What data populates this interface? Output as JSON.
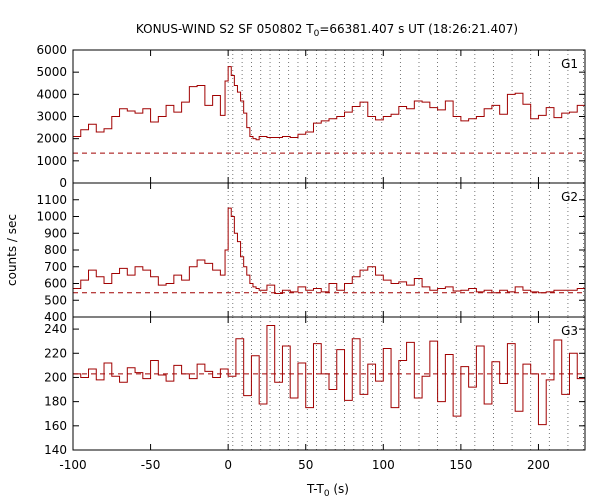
{
  "chart_data": {
    "type": "line",
    "title": {
      "prefix": "KONUS-WIND S2 SF 050802 T",
      "sub": "0",
      "suffix": "=66381.407 s UT (18:26:21.407)"
    },
    "xlabel": {
      "prefix": "T-T",
      "sub": "0",
      "suffix": " (s)"
    },
    "ylabel": "counts / sec",
    "xlim": [
      -100,
      230
    ],
    "x_ticks": [
      -100,
      -50,
      0,
      50,
      100,
      150,
      200
    ],
    "x_tick_labels": [
      "-100",
      "-50",
      "0",
      "50",
      "100",
      "150",
      "200"
    ],
    "trigger_lines_x": [
      0,
      3,
      9,
      15,
      21,
      27,
      33,
      39,
      45,
      51,
      57,
      63,
      69,
      75,
      81,
      87,
      93,
      99,
      111,
      123,
      135,
      147,
      159,
      171,
      183,
      195,
      207,
      219,
      229
    ],
    "colors": {
      "series": "#a00000",
      "grid": "#555555"
    },
    "panels": [
      {
        "name": "G1",
        "ylim": [
          0,
          6000
        ],
        "y_ticks": [
          0,
          1000,
          2000,
          3000,
          4000,
          5000,
          6000
        ],
        "y_tick_labels": [
          "0",
          "1000",
          "2000",
          "3000",
          "4000",
          "5000",
          "6000"
        ],
        "background_level": 1350,
        "series": {
          "x": [
            -100,
            -95,
            -90,
            -85,
            -80,
            -75,
            -70,
            -65,
            -60,
            -55,
            -50,
            -45,
            -40,
            -35,
            -30,
            -25,
            -20,
            -15,
            -10,
            -5,
            -2,
            0,
            2,
            4,
            6,
            8,
            10,
            12,
            14,
            16,
            18,
            20,
            25,
            30,
            35,
            40,
            45,
            50,
            55,
            60,
            65,
            70,
            75,
            80,
            85,
            90,
            95,
            100,
            105,
            110,
            115,
            120,
            125,
            130,
            135,
            140,
            145,
            150,
            155,
            160,
            165,
            170,
            175,
            180,
            185,
            190,
            195,
            200,
            205,
            210,
            215,
            220,
            225,
            230
          ],
          "y": [
            2100,
            2400,
            2650,
            2300,
            2450,
            3000,
            3350,
            3250,
            3150,
            3350,
            2750,
            3000,
            3500,
            3200,
            3650,
            4350,
            4400,
            3500,
            3950,
            3050,
            4600,
            5250,
            4850,
            4400,
            4100,
            3700,
            3150,
            2500,
            2100,
            2000,
            1950,
            2100,
            2050,
            2050,
            2100,
            2050,
            2200,
            2300,
            2700,
            2800,
            2900,
            3000,
            3200,
            3450,
            3650,
            3000,
            2850,
            3000,
            3100,
            3450,
            3350,
            3700,
            3650,
            3400,
            3300,
            3700,
            3000,
            2800,
            2900,
            3000,
            3350,
            3500,
            3100,
            4000,
            4050,
            3550,
            2900,
            3050,
            3400,
            2950,
            3150,
            3200,
            3500,
            3450
          ]
        }
      },
      {
        "name": "G2",
        "ylim": [
          400,
          1200
        ],
        "y_ticks": [
          400,
          500,
          600,
          700,
          800,
          900,
          1000,
          1100
        ],
        "y_tick_labels": [
          "400",
          "500",
          "600",
          "700",
          "800",
          "900",
          "1000",
          "1100"
        ],
        "background_level": 545,
        "series": {
          "x": [
            -100,
            -95,
            -90,
            -85,
            -80,
            -75,
            -70,
            -65,
            -60,
            -55,
            -50,
            -45,
            -40,
            -35,
            -30,
            -25,
            -20,
            -15,
            -10,
            -5,
            -2,
            0,
            2,
            4,
            6,
            8,
            10,
            12,
            14,
            16,
            18,
            20,
            25,
            30,
            35,
            40,
            45,
            50,
            55,
            60,
            65,
            70,
            75,
            80,
            85,
            90,
            95,
            100,
            105,
            110,
            115,
            120,
            125,
            130,
            135,
            140,
            145,
            150,
            155,
            160,
            165,
            170,
            175,
            180,
            185,
            190,
            195,
            200,
            205,
            210,
            215,
            220,
            225,
            230
          ],
          "y": [
            570,
            620,
            680,
            640,
            600,
            660,
            690,
            650,
            700,
            680,
            640,
            590,
            600,
            650,
            620,
            700,
            740,
            720,
            680,
            650,
            800,
            1050,
            1000,
            900,
            850,
            760,
            700,
            650,
            600,
            580,
            570,
            560,
            590,
            540,
            560,
            550,
            580,
            560,
            570,
            550,
            600,
            560,
            600,
            640,
            680,
            700,
            650,
            620,
            600,
            610,
            590,
            630,
            580,
            560,
            570,
            580,
            555,
            560,
            570,
            550,
            560,
            545,
            560,
            550,
            580,
            560,
            550,
            545,
            550,
            560,
            560,
            560,
            570,
            620
          ]
        }
      },
      {
        "name": "G3",
        "ylim": [
          140,
          250
        ],
        "y_ticks": [
          140,
          160,
          180,
          200,
          220,
          240
        ],
        "y_tick_labels": [
          "140",
          "160",
          "180",
          "200",
          "220",
          "240"
        ],
        "background_level": 203,
        "series": {
          "x": [
            -100,
            -95,
            -90,
            -85,
            -80,
            -75,
            -70,
            -65,
            -60,
            -55,
            -50,
            -45,
            -40,
            -35,
            -30,
            -25,
            -20,
            -15,
            -10,
            -5,
            0,
            5,
            10,
            15,
            20,
            25,
            30,
            35,
            40,
            45,
            50,
            55,
            60,
            65,
            70,
            75,
            80,
            85,
            90,
            95,
            100,
            105,
            110,
            115,
            120,
            125,
            130,
            135,
            140,
            145,
            150,
            155,
            160,
            165,
            170,
            175,
            180,
            185,
            190,
            195,
            200,
            205,
            210,
            215,
            220,
            225,
            230
          ],
          "y": [
            203,
            200,
            207,
            198,
            212,
            201,
            196,
            208,
            204,
            199,
            214,
            202,
            197,
            210,
            203,
            199,
            211,
            205,
            200,
            207,
            201,
            232,
            185,
            218,
            178,
            243,
            196,
            226,
            183,
            212,
            175,
            228,
            203,
            190,
            223,
            181,
            232,
            186,
            211,
            197,
            224,
            175,
            214,
            229,
            183,
            201,
            230,
            180,
            219,
            168,
            209,
            192,
            226,
            178,
            213,
            195,
            228,
            172,
            211,
            203,
            161,
            198,
            231,
            186,
            220,
            199,
            205
          ]
        }
      }
    ]
  }
}
